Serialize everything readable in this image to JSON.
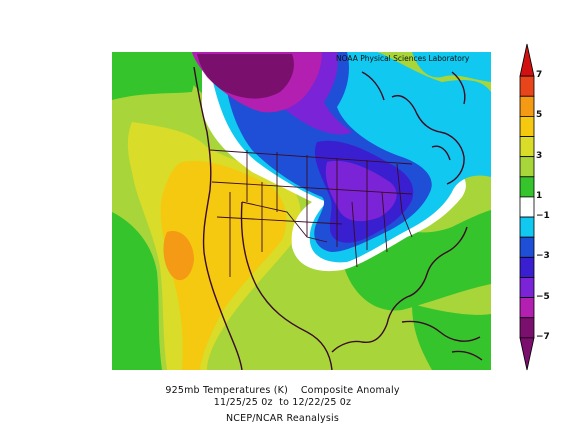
{
  "credit": "NOAA Physical Sciences Laboratory",
  "title": {
    "line1": "925mb Temperatures (K)    Composite Anomaly",
    "line2": "11/25/25 0z  to 12/22/25 0z",
    "line3": "NCEP/NCAR Reanalysis"
  },
  "colorbar": {
    "levels": [
      {
        "range": "<-7",
        "color": "#7a0f6e"
      },
      {
        "range": "-7 to -6",
        "color": "#7a0f6e"
      },
      {
        "range": "-6 to -5",
        "color": "#b31fb0"
      },
      {
        "range": "-5 to -4",
        "color": "#7b23d6"
      },
      {
        "range": "-4 to -3",
        "color": "#3a1fd0"
      },
      {
        "range": "-3 to -2",
        "color": "#1f4fd6"
      },
      {
        "range": "-2 to -1",
        "color": "#10c8f0"
      },
      {
        "range": "-1 to 1",
        "color": "#ffffff"
      },
      {
        "range": "1 to 2",
        "color": "#35c42c"
      },
      {
        "range": "2 to 3",
        "color": "#a8d63a"
      },
      {
        "range": "3 to 4",
        "color": "#d9dc28"
      },
      {
        "range": "4 to 5",
        "color": "#f4c90f"
      },
      {
        "range": "5 to 6",
        "color": "#f59a14"
      },
      {
        "range": "6 to 7",
        "color": "#e8451a"
      },
      {
        "range": ">7",
        "color": "#d11111"
      }
    ],
    "tick_labels": [
      "7",
      "5",
      "3",
      "1",
      "−1",
      "−3",
      "−5",
      "−7"
    ]
  }
}
